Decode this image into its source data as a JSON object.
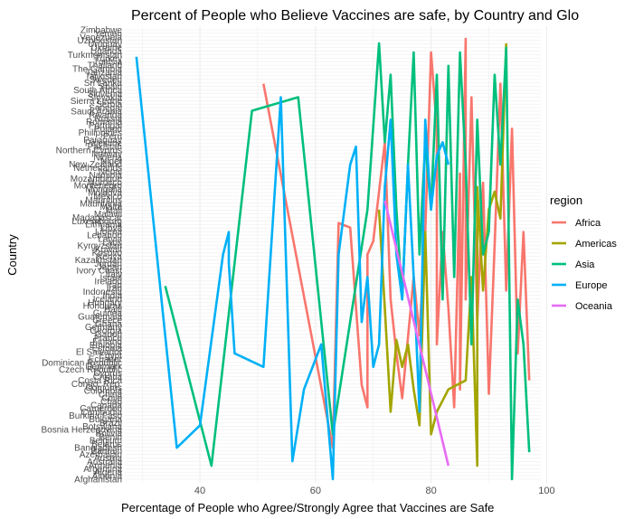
{
  "chart_data": {
    "type": "line",
    "title": "Percent of People who Believe Vaccines are safe, by Country and Glo",
    "xlabel": "Percentage of People who Agree/Strongly Agree that Vaccines are Safe",
    "ylabel": "Country",
    "xlim": [
      27,
      99
    ],
    "xticks": [
      40,
      60,
      80,
      100
    ],
    "grid": true,
    "legend_title": "region",
    "legend_position": "right",
    "colors": {
      "Africa": "#F8766D",
      "Americas": "#A3A500",
      "Asia": "#00BF7D",
      "Europe": "#00B0F6",
      "Oceania": "#E76BF3"
    },
    "y_tick_labels": [
      "Zimbabwe",
      "Yemen",
      "Venezuela",
      "Uzbekistan",
      "Uruguay",
      "Ukraine",
      "Uganda",
      "Turkmenistan",
      "Turkey",
      "Tunisia",
      "Thailand",
      "The Gambia",
      "Tanzania",
      "Tajikistan",
      "Sweden",
      "Sri Lanka",
      "Spain",
      "South Africa",
      "Slovenia",
      "Slovakia",
      "Sierra Leone",
      "Serbia",
      "Senegal",
      "Saudi Arabia",
      "Rwanda",
      "Russia",
      "Romania",
      "Portugal",
      "Poland",
      "Philippines",
      "Peru",
      "Paraguay",
      "Palestine",
      "Pakistan",
      "Northern Cyprus",
      "Norway",
      "Nigeria",
      "Niger",
      "New Zealand",
      "Netherlands",
      "Nepal",
      "Namibia",
      "Mozambique",
      "Morocco",
      "Montenegro",
      "Mongolia",
      "Moldova",
      "Mexico",
      "Mauritius",
      "Mauritania",
      "Malta",
      "Mali",
      "Malawi",
      "Madagascar",
      "Luxembourg",
      "Lithuania",
      "Libya",
      "Liberia",
      "Lebanon",
      "Latvia",
      "Laos",
      "Kyrgyzstan",
      "Kuwait",
      "Kosovo",
      "Kenya",
      "Kazakhstan",
      "Jordan",
      "Japan",
      "Ivory Coast",
      "Italy",
      "Israel",
      "Ireland",
      "Iraq",
      "Iran",
      "Indonesia",
      "India",
      "Iceland",
      "Hungary",
      "Honduras",
      "Haiti",
      "Guinea",
      "Guatemala",
      "Greece",
      "Ghana",
      "Germany",
      "Georgia",
      "Gabon",
      "France",
      "Finland",
      "Ethiopia",
      "Estonia",
      "El Salvador",
      "Egypt",
      "Ecuador",
      "Dominican Republic",
      "Denmark",
      "Czech Republic",
      "Cyprus",
      "Croatia",
      "Costa Rica",
      "Congo, Rep.",
      "Comoros",
      "Colombia",
      "China",
      "Chile",
      "Chad",
      "Canada",
      "Cameroon",
      "Cambodia",
      "Burkina Faso",
      "Bulgaria",
      "Brazil",
      "Botswana",
      "Bosnia Herzegovina",
      "Bolivia",
      "Benin",
      "Belgium",
      "Belarus",
      "Bangladesh",
      "Bahrain",
      "Azerbaijan",
      "Austria",
      "Australia",
      "Armenia",
      "Argentina",
      "Algeria",
      "Albania",
      "Afghanistan"
    ],
    "series": [
      {
        "name": "Africa",
        "points": [
          [
            51,
            0.12
          ],
          [
            63,
            0.93
          ],
          [
            64,
            0.43
          ],
          [
            66,
            0.44
          ],
          [
            68,
            0.79
          ],
          [
            69,
            0.84
          ],
          [
            69,
            0.5
          ],
          [
            70,
            0.47
          ],
          [
            72,
            0.25
          ],
          [
            73,
            0.6
          ],
          [
            74,
            0.72
          ],
          [
            75,
            0.82
          ],
          [
            77,
            0.55
          ],
          [
            78,
            0.68
          ],
          [
            79,
            0.45
          ],
          [
            80,
            0.05
          ],
          [
            81,
            0.22
          ],
          [
            81,
            0.7
          ],
          [
            82,
            0.45
          ],
          [
            83,
            0.62
          ],
          [
            84,
            0.84
          ],
          [
            85,
            0.32
          ],
          [
            85,
            0.8
          ],
          [
            86,
            0.02
          ],
          [
            86,
            0.6
          ],
          [
            87,
            0.15
          ],
          [
            88,
            0.65
          ],
          [
            89,
            0.34
          ],
          [
            90,
            0.81
          ],
          [
            91,
            0.48
          ],
          [
            92,
            0.12
          ],
          [
            93,
            0.58
          ],
          [
            94,
            0.22
          ],
          [
            95,
            0.72
          ],
          [
            96,
            0.45
          ],
          [
            97,
            0.78
          ]
        ]
      },
      {
        "name": "Americas",
        "points": [
          [
            71,
            0.4
          ],
          [
            72,
            0.62
          ],
          [
            73,
            0.85
          ],
          [
            74,
            0.69
          ],
          [
            75,
            0.75
          ],
          [
            76,
            0.7
          ],
          [
            77,
            0.8
          ],
          [
            78,
            0.88
          ],
          [
            79,
            0.45
          ],
          [
            80,
            0.9
          ],
          [
            81,
            0.85
          ],
          [
            83,
            0.8
          ],
          [
            86,
            0.78
          ],
          [
            87,
            0.55
          ],
          [
            88,
            0.97
          ],
          [
            88,
            0.35
          ],
          [
            89,
            0.58
          ],
          [
            90,
            0.4
          ],
          [
            91,
            0.36
          ],
          [
            92,
            0.42
          ],
          [
            93,
            0.03
          ]
        ]
      },
      {
        "name": "Asia",
        "points": [
          [
            34,
            0.57
          ],
          [
            42,
            0.97
          ],
          [
            49,
            0.18
          ],
          [
            57,
            0.15
          ],
          [
            63,
            0.9
          ],
          [
            69,
            0.4
          ],
          [
            71,
            0.03
          ],
          [
            72,
            0.25
          ],
          [
            73,
            0.1
          ],
          [
            74,
            0.4
          ],
          [
            75,
            0.6
          ],
          [
            76,
            0.3
          ],
          [
            77,
            0.05
          ],
          [
            78,
            0.5
          ],
          [
            79,
            0.25
          ],
          [
            80,
            0.4
          ],
          [
            81,
            0.1
          ],
          [
            82,
            0.6
          ],
          [
            83,
            0.08
          ],
          [
            84,
            0.55
          ],
          [
            85,
            0.05
          ],
          [
            86,
            0.3
          ],
          [
            87,
            0.7
          ],
          [
            88,
            0.2
          ],
          [
            89,
            0.5
          ],
          [
            90,
            0.45
          ],
          [
            91,
            0.1
          ],
          [
            92,
            0.3
          ],
          [
            93,
            0.04
          ],
          [
            94,
            1.0
          ],
          [
            95,
            0.6
          ],
          [
            96,
            0.7
          ],
          [
            97,
            0.94
          ]
        ]
      },
      {
        "name": "Europe",
        "points": [
          [
            29,
            0.06
          ],
          [
            36,
            0.93
          ],
          [
            40,
            0.88
          ],
          [
            44,
            0.5
          ],
          [
            45,
            0.45
          ],
          [
            45,
            0.52
          ],
          [
            46,
            0.72
          ],
          [
            51,
            0.75
          ],
          [
            54,
            0.15
          ],
          [
            56,
            0.96
          ],
          [
            58,
            0.8
          ],
          [
            61,
            0.7
          ],
          [
            63,
            1.0
          ],
          [
            64,
            0.5
          ],
          [
            66,
            0.3
          ],
          [
            67,
            0.26
          ],
          [
            68,
            0.65
          ],
          [
            69,
            0.55
          ],
          [
            70,
            0.75
          ],
          [
            71,
            0.7
          ],
          [
            72,
            0.35
          ],
          [
            73,
            0.2
          ],
          [
            74,
            0.5
          ],
          [
            75,
            0.6
          ],
          [
            76,
            0.3
          ],
          [
            77,
            0.55
          ],
          [
            78,
            0.85
          ],
          [
            79,
            0.2
          ],
          [
            80,
            0.4
          ],
          [
            81,
            0.28
          ],
          [
            82,
            0.25
          ],
          [
            83,
            0.3
          ]
        ]
      },
      {
        "name": "Oceania",
        "points": [
          [
            72,
            0.38
          ],
          [
            83,
            0.97
          ]
        ]
      }
    ]
  }
}
